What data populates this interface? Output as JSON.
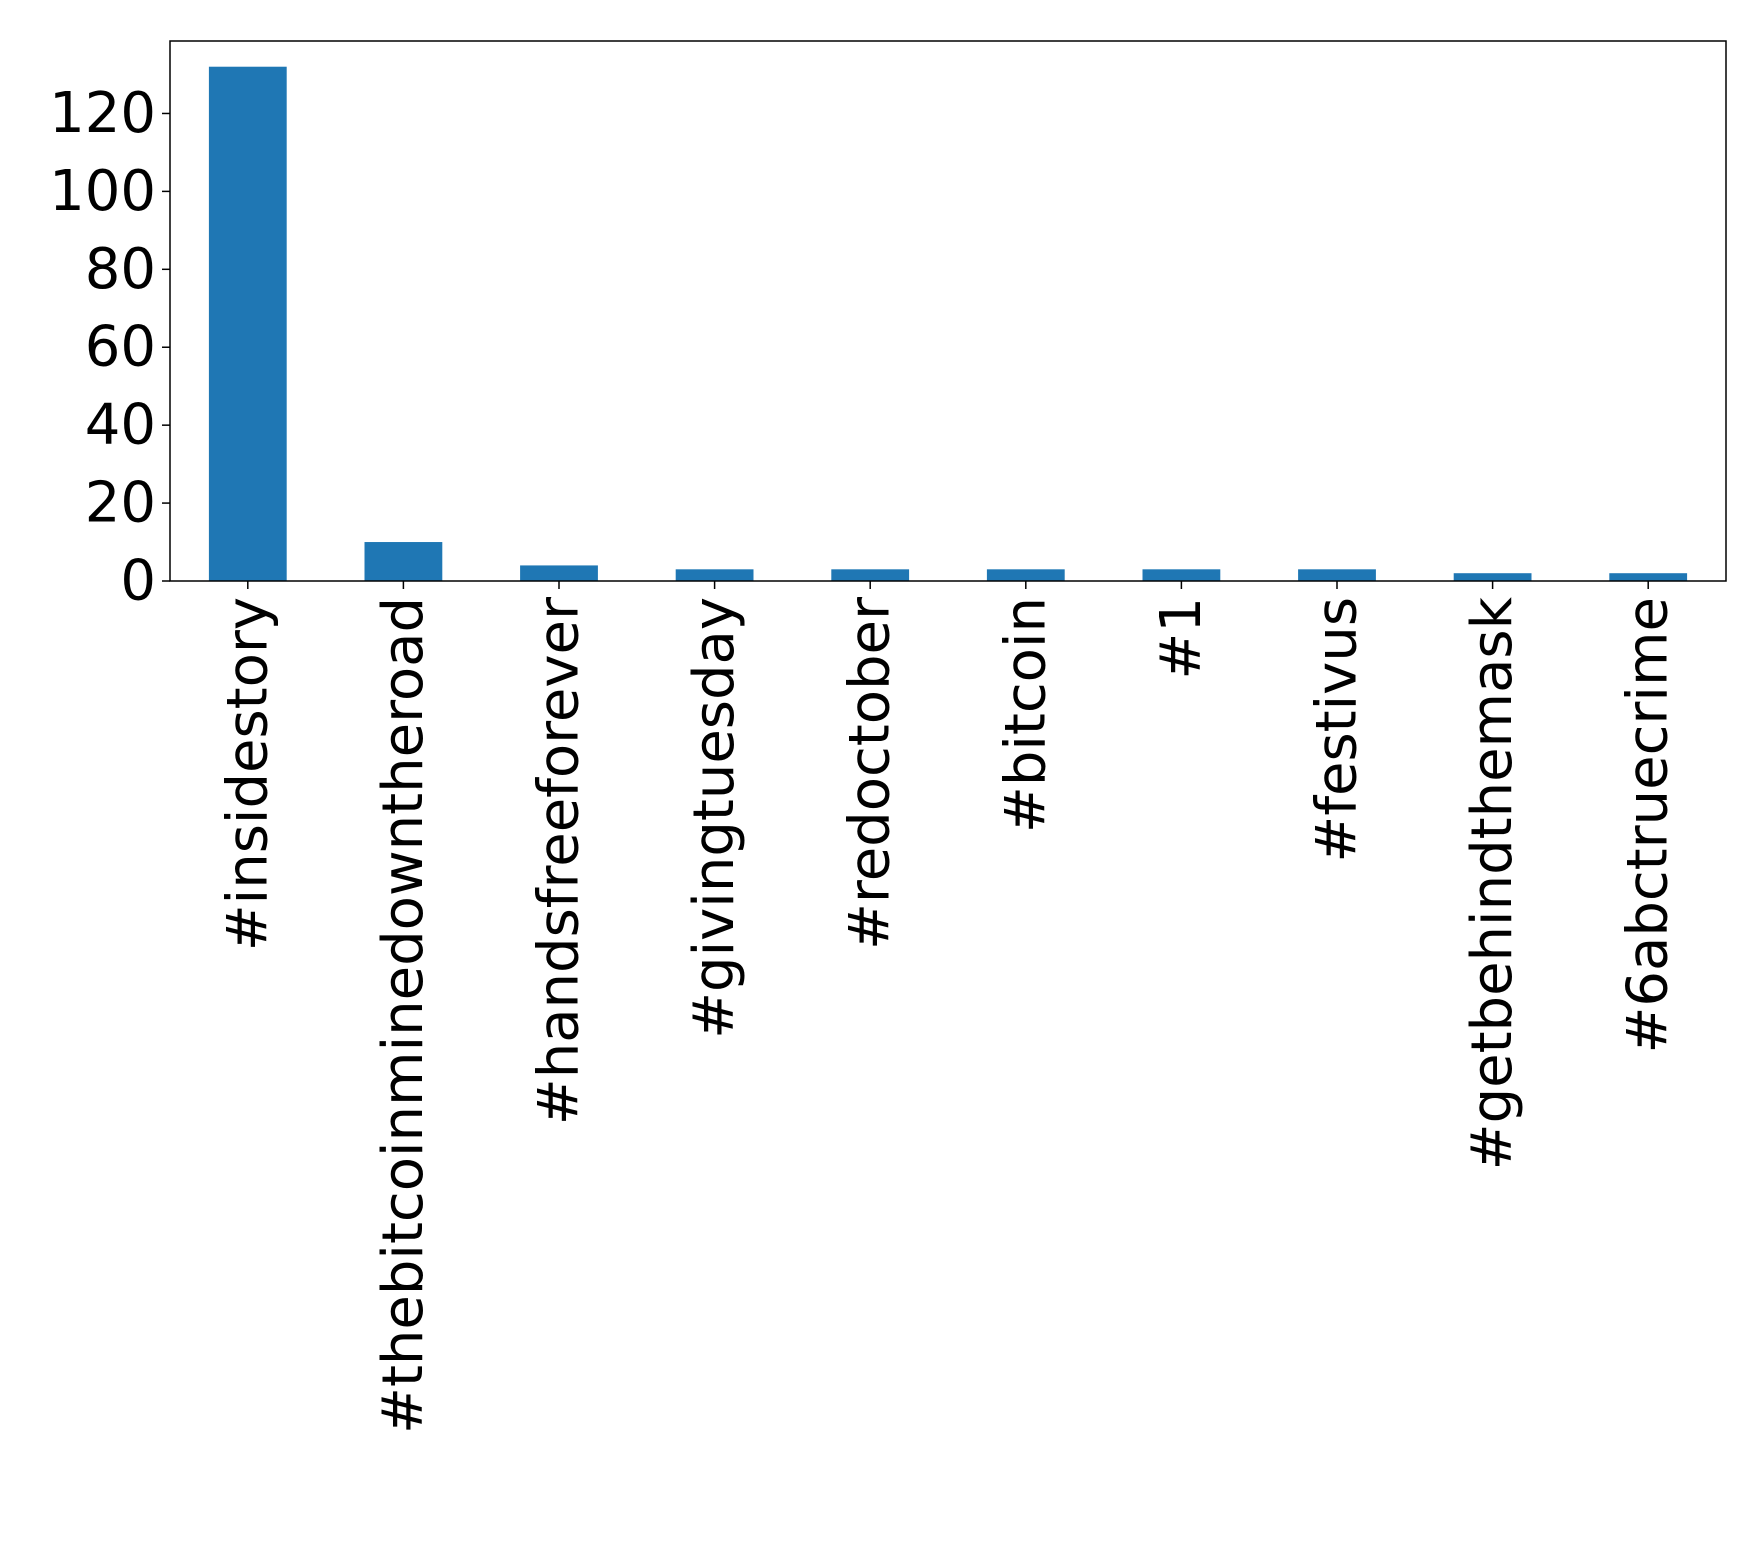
{
  "chart_data": {
    "type": "bar",
    "title": "",
    "xlabel": "",
    "ylabel": "",
    "categories": [
      "#insidestory",
      "#thebitcoinminedowntheroad",
      "#handsfreeforever",
      "#givingtuesday",
      "#redoctober",
      "#bitcoin",
      "#1",
      "#festivus",
      "#getbehindthemask",
      "#6abctruecrime"
    ],
    "values": [
      132,
      10,
      4,
      3,
      3,
      3,
      3,
      3,
      2,
      2
    ],
    "ylim": [
      0,
      138.6
    ],
    "yticks": [
      0,
      20,
      40,
      60,
      80,
      100,
      120
    ],
    "grid": false,
    "legend": "none",
    "colors": {
      "bar": "#1f77b4",
      "axis": "#000000"
    }
  }
}
